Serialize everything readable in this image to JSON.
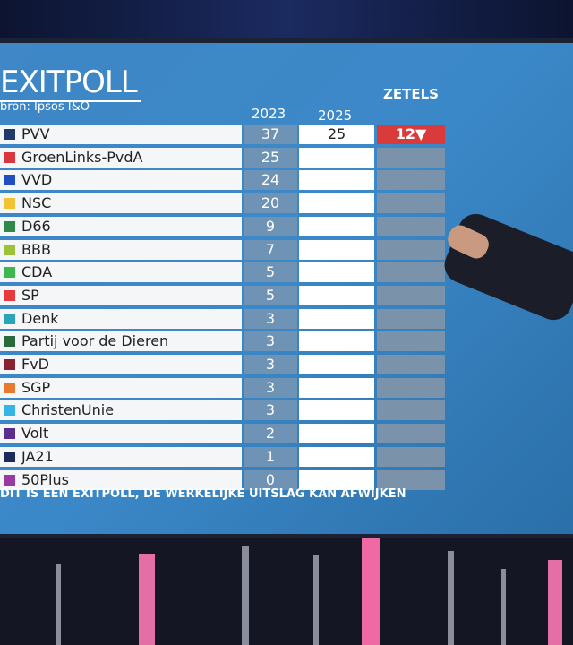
{
  "header": {
    "title": "EXITPOLL",
    "source": "bron: Ipsos I&O",
    "col_2023": "2023",
    "col_2025": "2025",
    "col_seats": "ZETELS"
  },
  "table": {
    "rows": [
      {
        "party": "PVV",
        "color": "#1f3a6b",
        "seats_2023": 37,
        "seats_2025": 25,
        "change": "12▼"
      },
      {
        "party": "GroenLinks-PvdA",
        "color": "#d9363e",
        "seats_2023": 25
      },
      {
        "party": "VVD",
        "color": "#1f4fc0",
        "seats_2023": 24
      },
      {
        "party": "NSC",
        "color": "#f2c230",
        "seats_2023": 20
      },
      {
        "party": "D66",
        "color": "#2e8a4a",
        "seats_2023": 9
      },
      {
        "party": "BBB",
        "color": "#9cc23a",
        "seats_2023": 7
      },
      {
        "party": "CDA",
        "color": "#3cb84f",
        "seats_2023": 5
      },
      {
        "party": "SP",
        "color": "#e8383d",
        "seats_2023": 5
      },
      {
        "party": "Denk",
        "color": "#2aa5b8",
        "seats_2023": 3
      },
      {
        "party": "Partij voor de Dieren",
        "color": "#2a6b3c",
        "seats_2023": 3
      },
      {
        "party": "FvD",
        "color": "#8b2030",
        "seats_2023": 3
      },
      {
        "party": "SGP",
        "color": "#e8792e",
        "seats_2023": 3
      },
      {
        "party": "ChristenUnie",
        "color": "#33b5e5",
        "seats_2023": 3
      },
      {
        "party": "Volt",
        "color": "#5b2d8e",
        "seats_2023": 2
      },
      {
        "party": "JA21",
        "color": "#1c2b5a",
        "seats_2023": 1
      },
      {
        "party": "50Plus",
        "color": "#9a3a9e",
        "seats_2023": 0
      }
    ]
  },
  "footer": {
    "note": "DIT IS EEN EXITPOLL, DE WERKELIJKE UITSLAG KAN AFWIJKEN"
  }
}
